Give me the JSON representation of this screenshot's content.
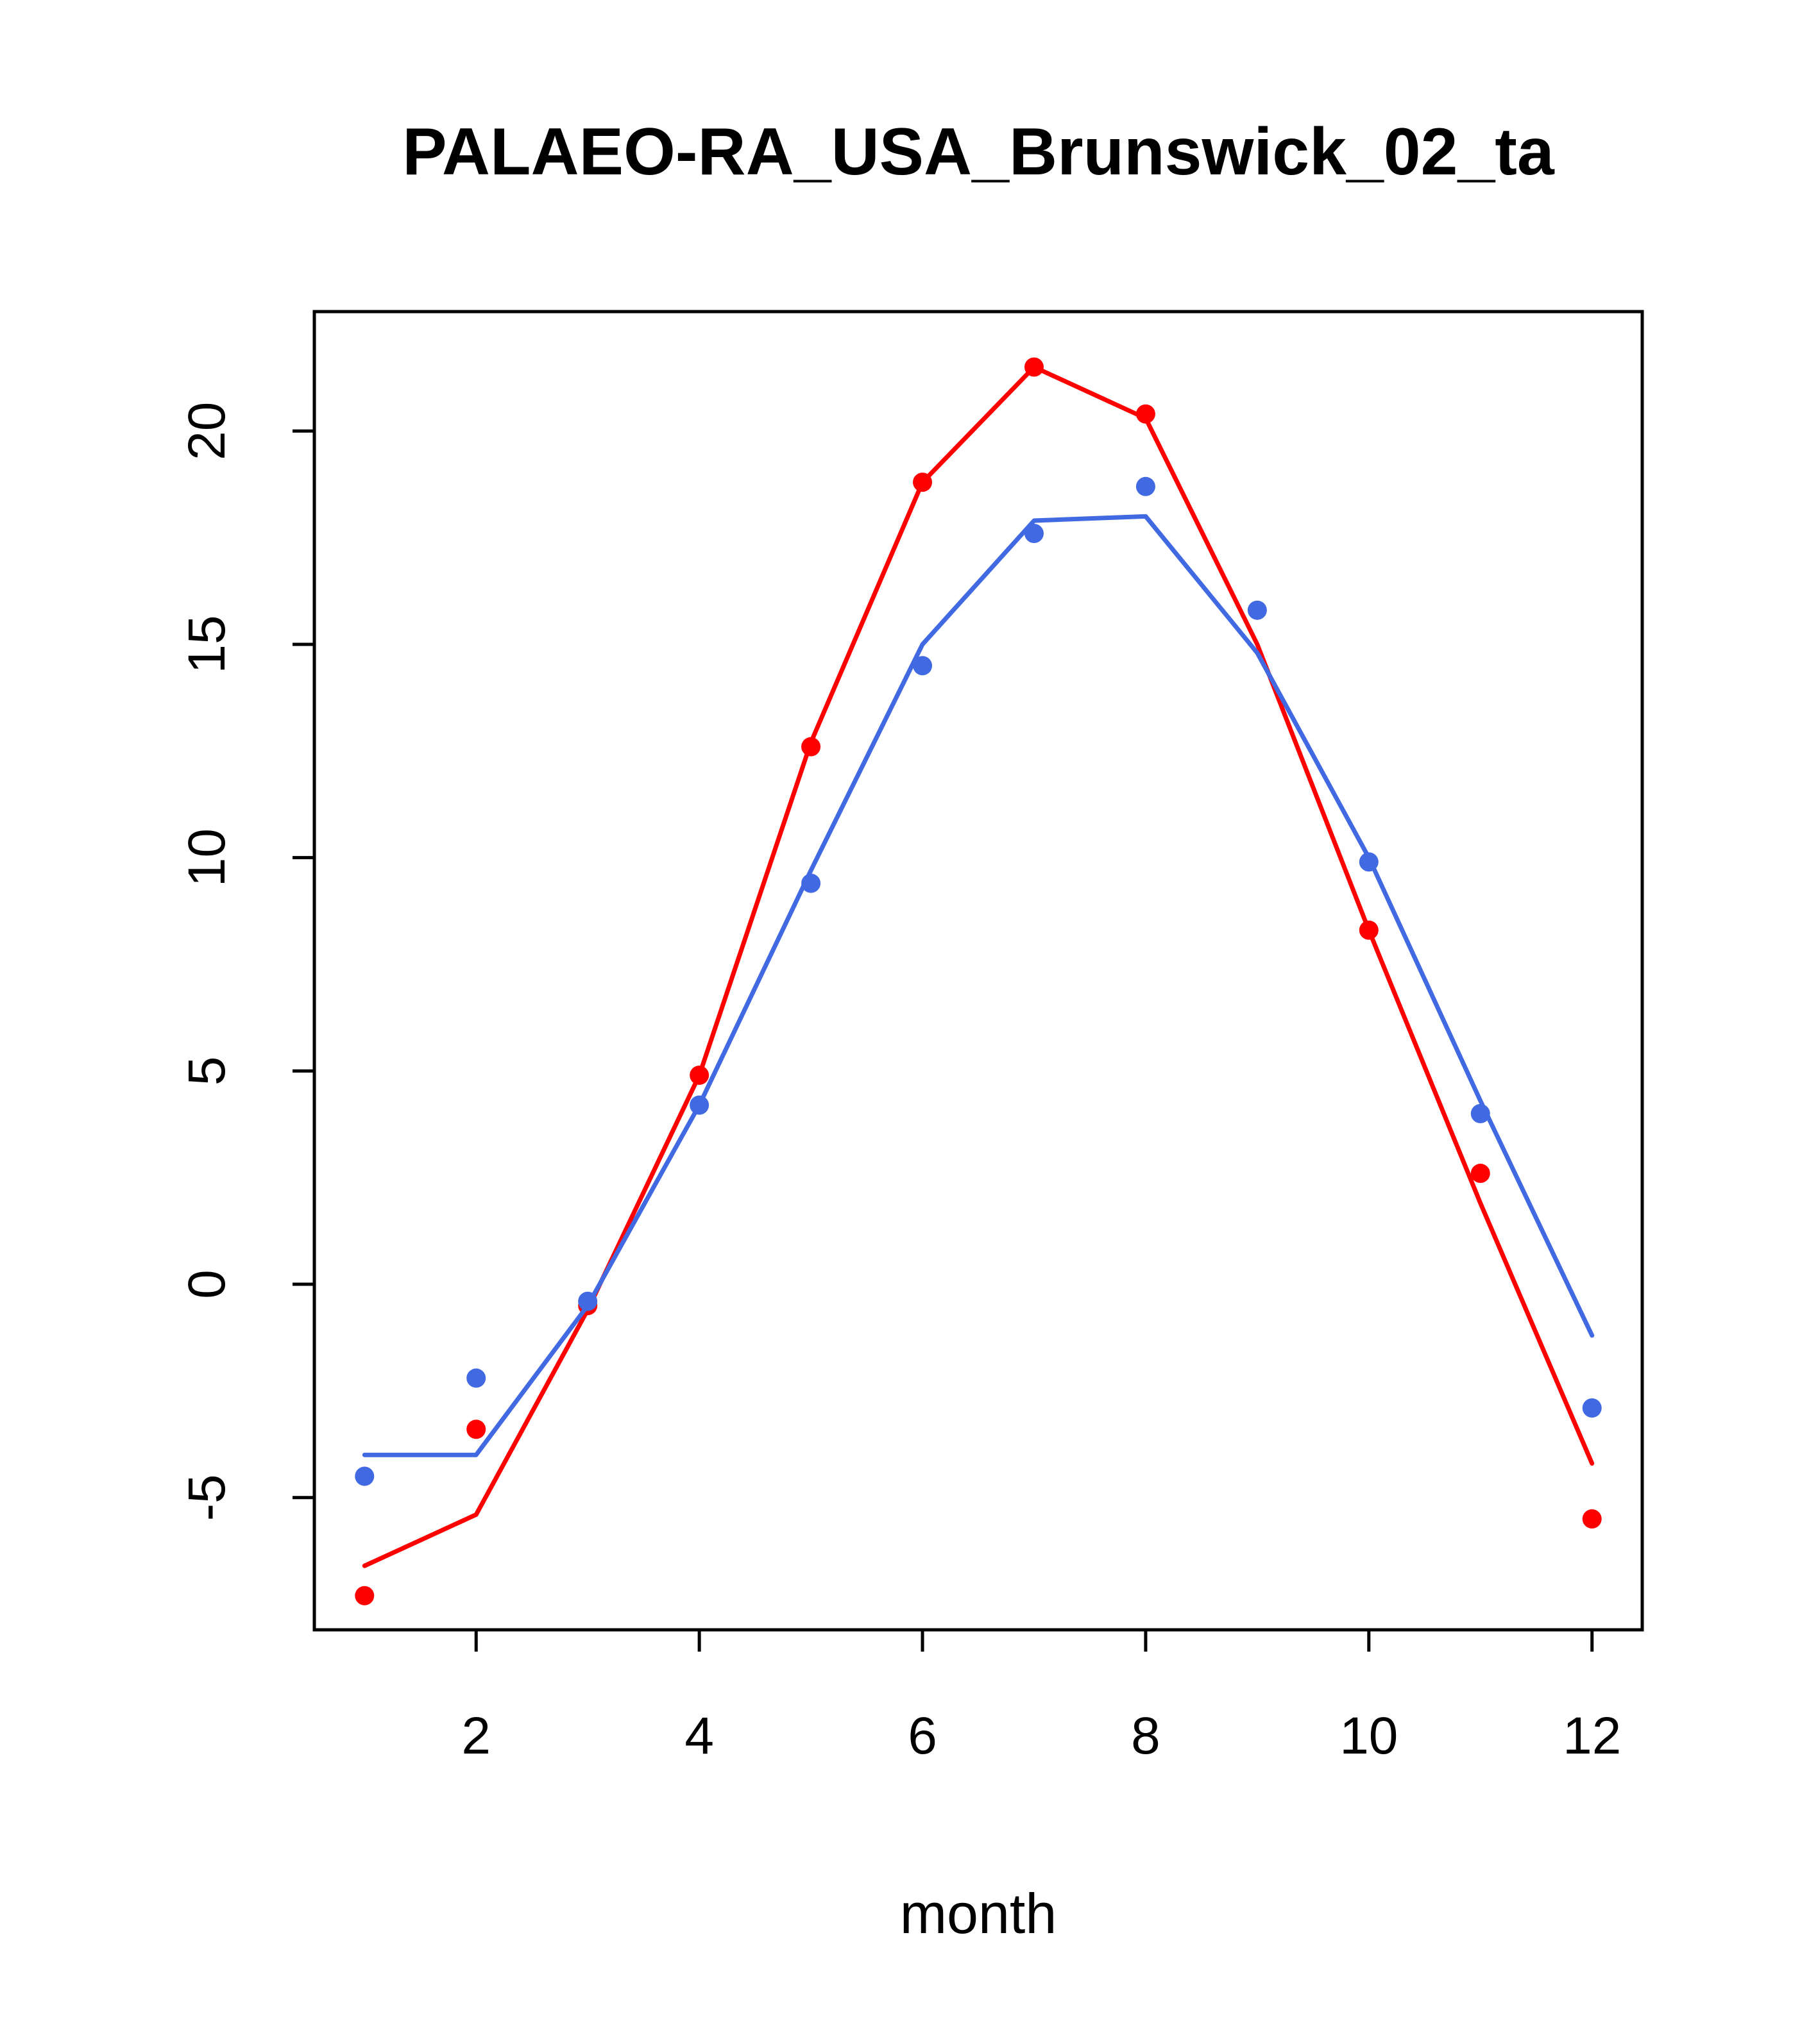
{
  "page": {
    "background": "#ffffff"
  },
  "chart_data": {
    "type": "line",
    "title": "PALAEO-RA_USA_Brunswick_02_ta",
    "xlabel": "month",
    "ylabel": "",
    "x": [
      1,
      2,
      3,
      4,
      5,
      6,
      7,
      8,
      9,
      10,
      11,
      12
    ],
    "xlim": [
      0.55,
      12.45
    ],
    "ylim": [
      -8.1,
      22.8
    ],
    "x_ticks": [
      2,
      4,
      6,
      8,
      10,
      12
    ],
    "y_ticks": [
      -5,
      0,
      5,
      10,
      15,
      20
    ],
    "grid": false,
    "legend": null,
    "colors": {
      "red": "#FF0000",
      "blue": "#4169E1",
      "axis": "#000000"
    },
    "series": [
      {
        "name": "red-line",
        "draw": "line",
        "color": "#FF0000",
        "values": [
          -6.6,
          -5.4,
          -0.6,
          4.9,
          12.7,
          18.8,
          21.5,
          20.3,
          15.0,
          8.3,
          1.9,
          -4.2
        ]
      },
      {
        "name": "red-points",
        "draw": "points",
        "color": "#FF0000",
        "values": [
          -7.3,
          -3.4,
          -0.5,
          4.9,
          12.6,
          18.8,
          21.5,
          20.4,
          null,
          8.3,
          2.6,
          -5.5
        ]
      },
      {
        "name": "blue-line",
        "draw": "line",
        "color": "#4169E1",
        "values": [
          -4.0,
          -4.0,
          -0.5,
          4.2,
          9.7,
          15.0,
          17.9,
          18.0,
          14.8,
          10.0,
          4.3,
          -1.2
        ]
      },
      {
        "name": "blue-points",
        "draw": "points",
        "color": "#4169E1",
        "values": [
          -4.5,
          -2.2,
          -0.4,
          4.2,
          9.4,
          14.5,
          17.6,
          18.7,
          15.8,
          9.9,
          4.0,
          -2.9
        ]
      }
    ]
  }
}
